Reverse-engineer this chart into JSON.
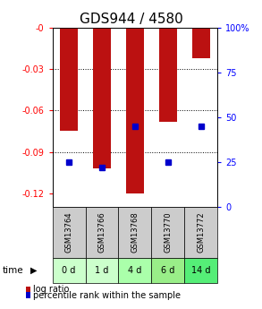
{
  "title": "GDS944 / 4580",
  "samples": [
    "GSM13764",
    "GSM13766",
    "GSM13768",
    "GSM13770",
    "GSM13772"
  ],
  "time_labels": [
    "0 d",
    "1 d",
    "4 d",
    "6 d",
    "14 d"
  ],
  "log_ratios": [
    -0.075,
    -0.102,
    -0.12,
    -0.068,
    -0.022
  ],
  "percentile_ranks": [
    25,
    22,
    45,
    25,
    45
  ],
  "ylim_left": [
    -0.13,
    0.0
  ],
  "ylim_right": [
    0,
    100
  ],
  "yticks_left": [
    0.0,
    -0.03,
    -0.06,
    -0.09,
    -0.12
  ],
  "yticks_right": [
    0,
    25,
    50,
    75,
    100
  ],
  "bar_color": "#bb1111",
  "percentile_color": "#0000cc",
  "bg_color": "#ffffff",
  "sample_bg": "#cccccc",
  "time_bg_colors": [
    "#ccffcc",
    "#ccffcc",
    "#aaffaa",
    "#99ee88",
    "#55ee77"
  ],
  "bar_width": 0.55,
  "title_fontsize": 11,
  "tick_fontsize": 7,
  "legend_fontsize": 7
}
